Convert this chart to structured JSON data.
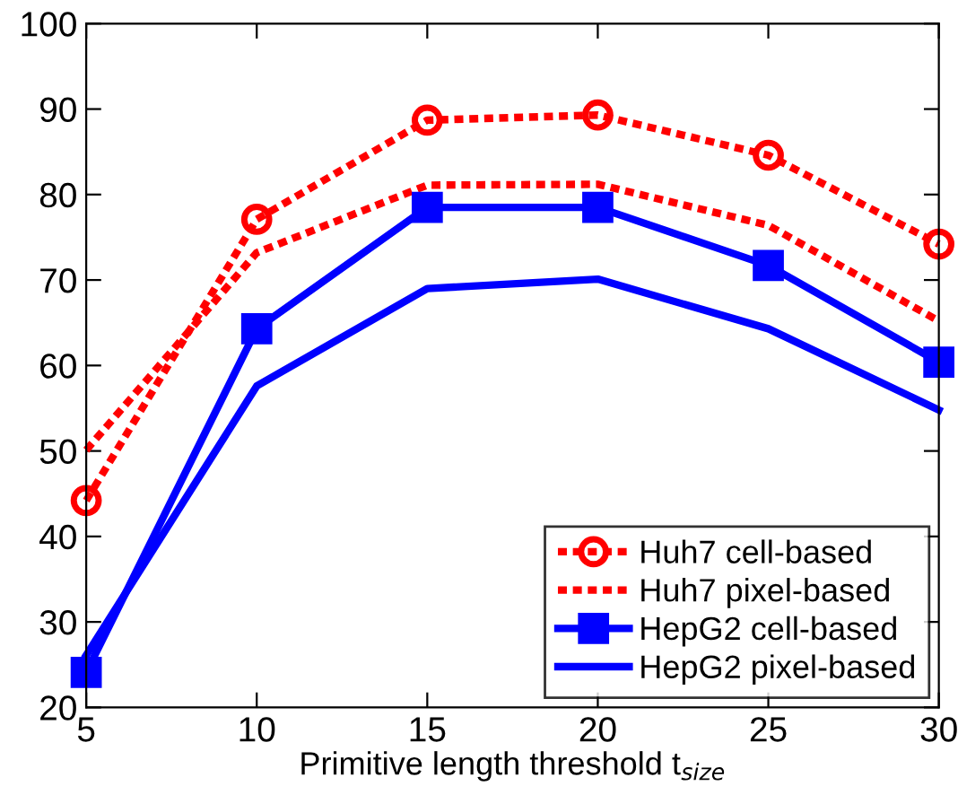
{
  "chart_data": {
    "type": "line",
    "xlabel": "Primitive length threshold t$_{size}$",
    "x": [
      5,
      10,
      15,
      20,
      25,
      30
    ],
    "xlim": [
      5,
      30
    ],
    "xticks": [
      5,
      10,
      15,
      20,
      25,
      30
    ],
    "ylim": [
      20,
      100
    ],
    "yticks": [
      20,
      30,
      40,
      50,
      60,
      70,
      80,
      90,
      100
    ],
    "grid": false,
    "legend": "bottom right",
    "series": [
      {
        "name": "Huh7 cell-based",
        "color": "#ff0000",
        "marker": "circle",
        "line_style": "dashed",
        "values": [
          44.2,
          77.1,
          88.7,
          89.3,
          84.6,
          74.2
        ]
      },
      {
        "name": "Huh7 pixel-based",
        "color": "#ff0000",
        "marker": "none",
        "line_style": "dashed",
        "values": [
          50.1,
          73.2,
          81.1,
          81.2,
          76.4,
          65.2
        ]
      },
      {
        "name": "HepG2 cell-based",
        "color": "#0000ff",
        "marker": "square",
        "line_style": "solid",
        "values": [
          24.1,
          64.3,
          78.5,
          78.5,
          71.7,
          60.4
        ]
      },
      {
        "name": "HepG2 pixel-based",
        "color": "#0000ff",
        "marker": "none",
        "line_style": "solid",
        "values": [
          26.1,
          57.6,
          69.0,
          70.1,
          64.3,
          54.8
        ]
      }
    ]
  }
}
